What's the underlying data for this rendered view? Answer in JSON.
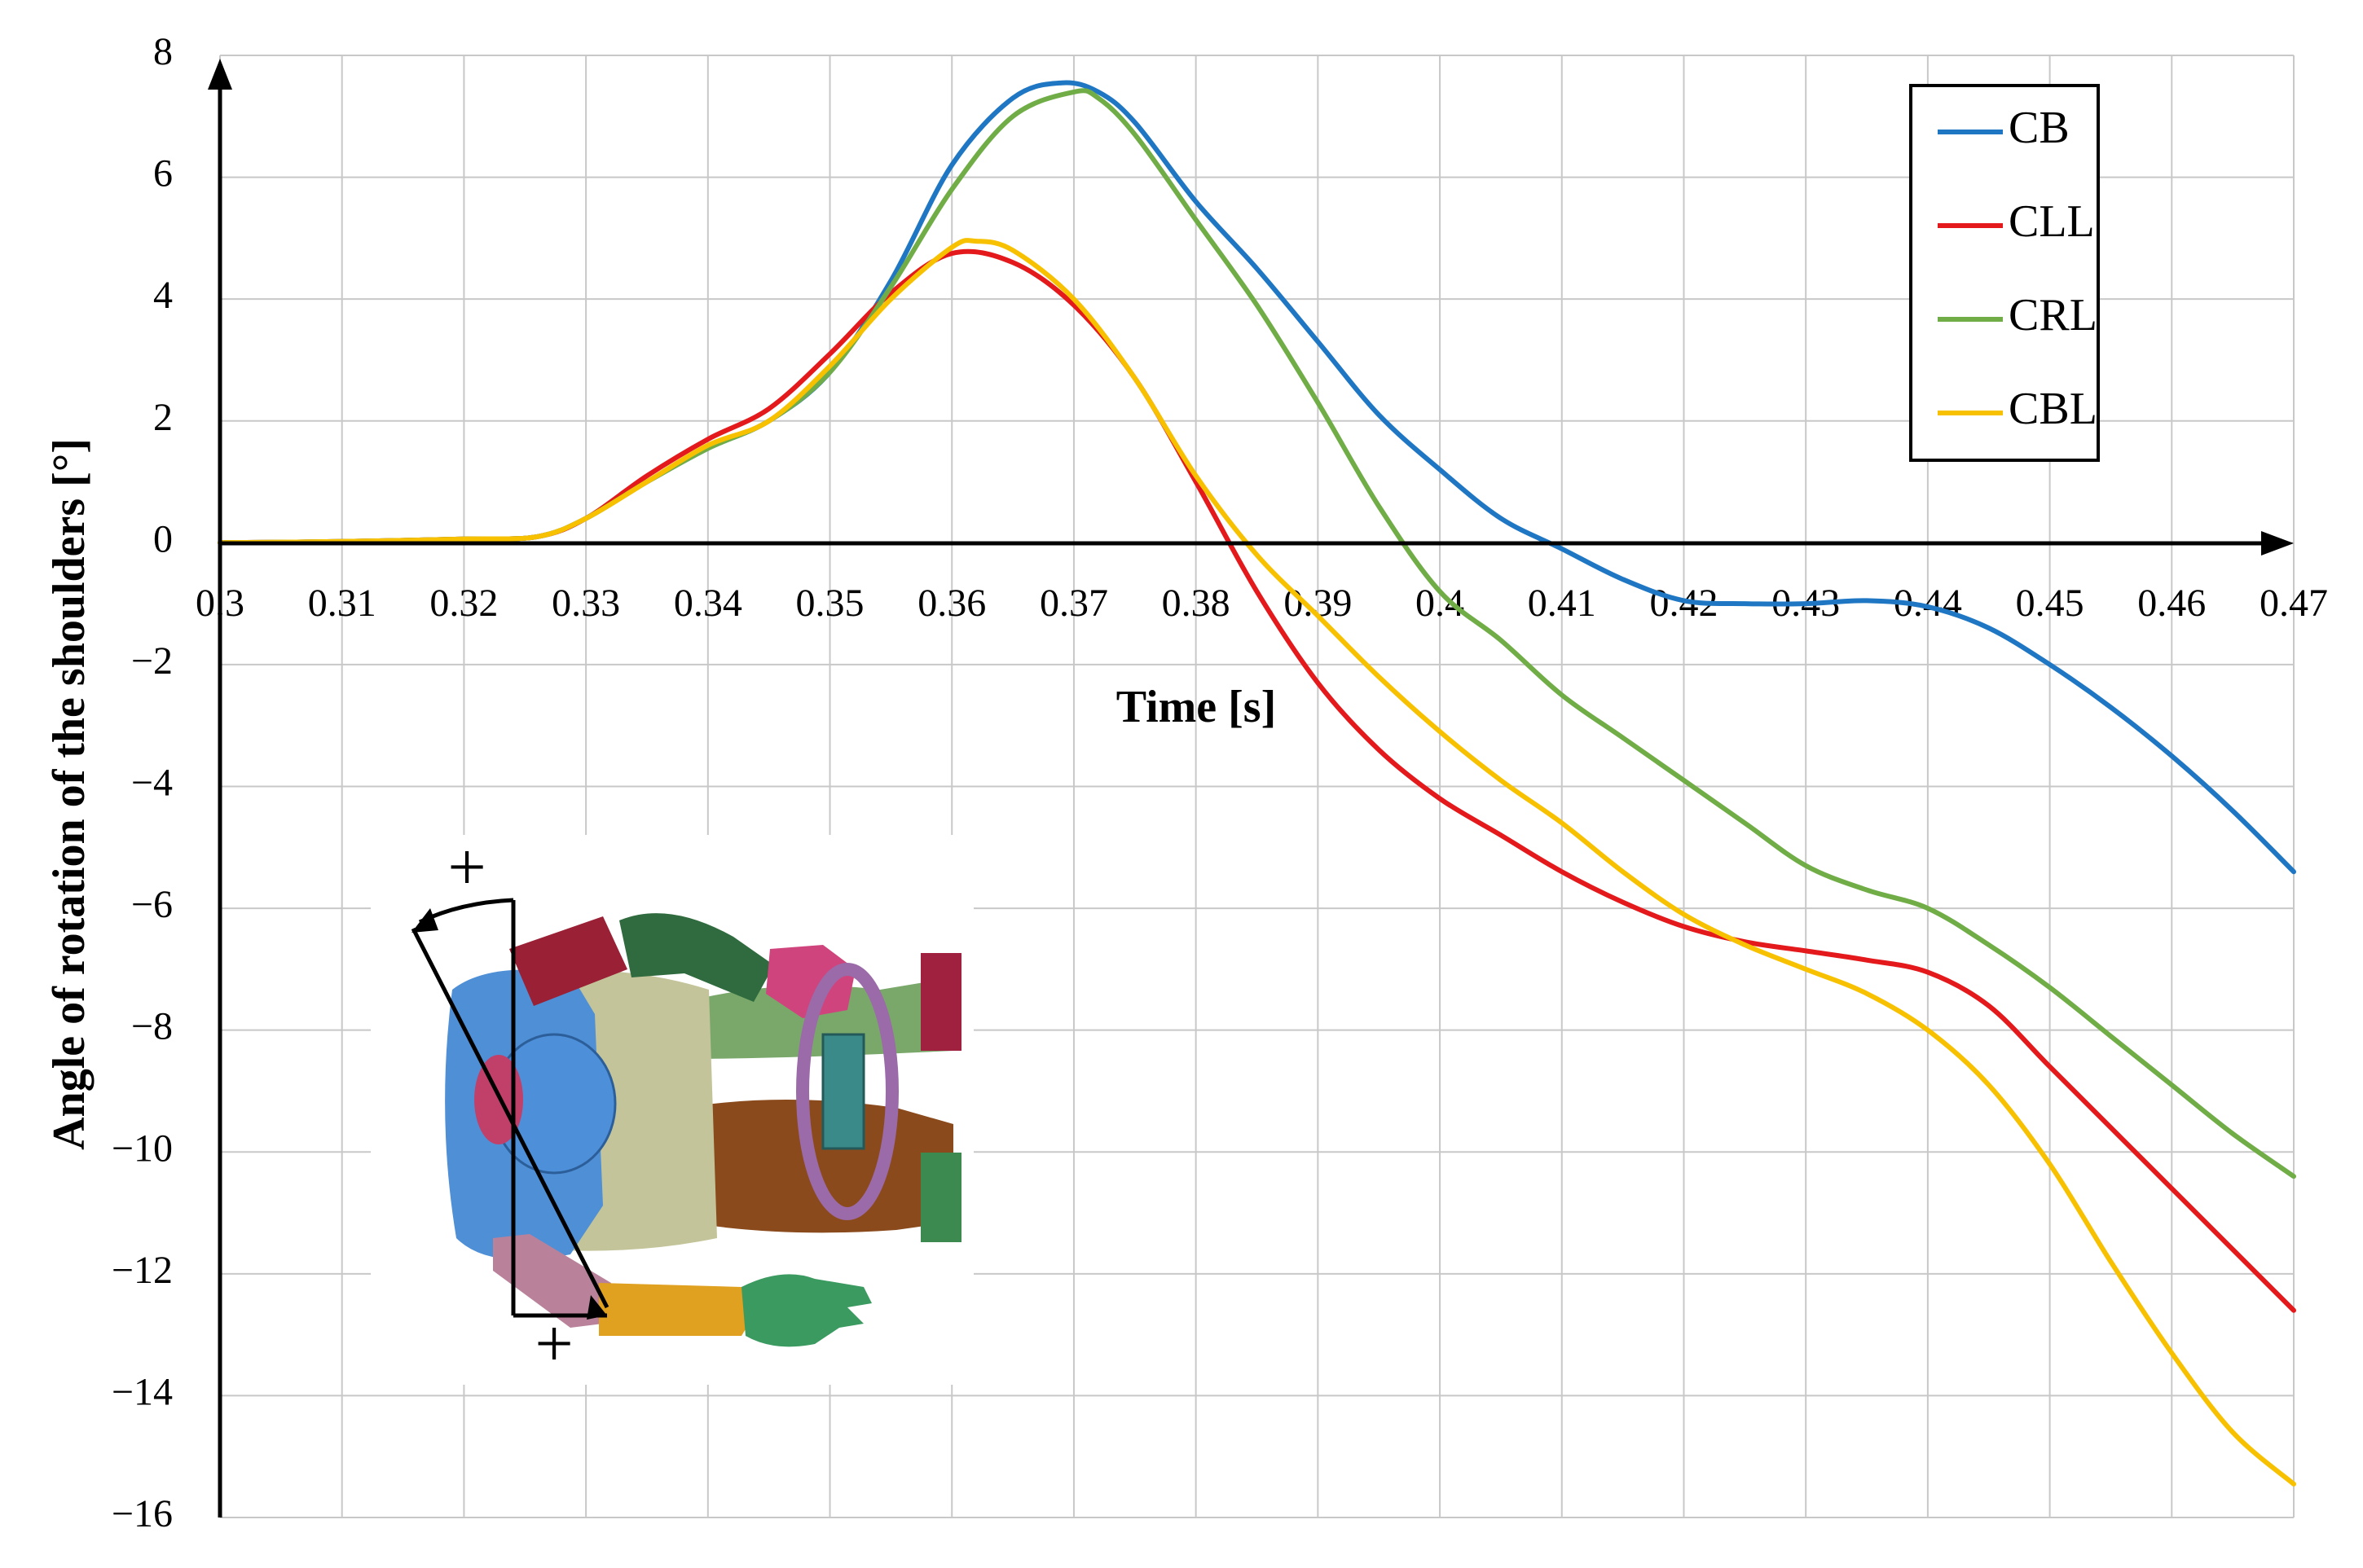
{
  "chart_data": {
    "type": "line",
    "xlabel": "Time [s]",
    "ylabel": "Angle of rotation of the shoulders [°]",
    "xlim": [
      0.3,
      0.47
    ],
    "ylim": [
      -16,
      8
    ],
    "x_ticks": [
      0.3,
      0.31,
      0.32,
      0.33,
      0.34,
      0.35,
      0.36,
      0.37,
      0.38,
      0.39,
      0.4,
      0.41,
      0.42,
      0.43,
      0.44,
      0.45,
      0.46,
      0.47
    ],
    "x_tick_labels": [
      "0.3",
      "0.31",
      "0.32",
      "0.33",
      "0.34",
      "0.35",
      "0.36",
      "0.37",
      "0.38",
      "0.39",
      "0.4",
      "0.41",
      "0.42",
      "0.43",
      "0.44",
      "0.45",
      "0.46",
      "0.47"
    ],
    "y_ticks": [
      8,
      6,
      4,
      2,
      0,
      -2,
      -4,
      -6,
      -8,
      -10,
      -12,
      -14,
      -16
    ],
    "y_tick_labels": [
      "8",
      "6",
      "4",
      "2",
      "0",
      "−2",
      "−4",
      "−6",
      "−8",
      "−10",
      "−12",
      "−14",
      "−16"
    ],
    "grid": true,
    "legend_position": "top-right",
    "series": [
      {
        "name": "CB",
        "color": "#1f77c4",
        "x": [
          0.3,
          0.31,
          0.32,
          0.326,
          0.33,
          0.335,
          0.34,
          0.345,
          0.35,
          0.355,
          0.36,
          0.365,
          0.369,
          0.372,
          0.375,
          0.38,
          0.385,
          0.39,
          0.395,
          0.4,
          0.405,
          0.41,
          0.415,
          0.42,
          0.425,
          0.43,
          0.435,
          0.44,
          0.445,
          0.45,
          0.455,
          0.46,
          0.465,
          0.47
        ],
        "y": [
          0,
          0.02,
          0.06,
          0.1,
          0.4,
          1.0,
          1.55,
          2.0,
          2.8,
          4.3,
          6.2,
          7.3,
          7.55,
          7.4,
          6.9,
          5.6,
          4.5,
          3.3,
          2.1,
          1.2,
          0.4,
          -0.1,
          -0.6,
          -0.95,
          -1.0,
          -1.0,
          -0.95,
          -1.05,
          -1.4,
          -2.0,
          -2.7,
          -3.5,
          -4.4,
          -5.4
        ]
      },
      {
        "name": "CLL",
        "color": "#e3191c",
        "x": [
          0.3,
          0.31,
          0.32,
          0.326,
          0.33,
          0.335,
          0.34,
          0.345,
          0.35,
          0.355,
          0.36,
          0.365,
          0.37,
          0.375,
          0.38,
          0.385,
          0.39,
          0.395,
          0.4,
          0.405,
          0.41,
          0.415,
          0.42,
          0.425,
          0.43,
          0.435,
          0.44,
          0.445,
          0.45,
          0.455,
          0.46,
          0.465,
          0.47
        ],
        "y": [
          0,
          0.02,
          0.06,
          0.1,
          0.4,
          1.1,
          1.7,
          2.2,
          3.1,
          4.1,
          4.75,
          4.6,
          3.9,
          2.7,
          1.0,
          -0.8,
          -2.3,
          -3.4,
          -4.2,
          -4.8,
          -5.4,
          -5.9,
          -6.3,
          -6.55,
          -6.7,
          -6.85,
          -7.05,
          -7.6,
          -8.6,
          -9.6,
          -10.6,
          -11.6,
          -12.6
        ]
      },
      {
        "name": "CRL",
        "color": "#70ad47",
        "x": [
          0.3,
          0.31,
          0.32,
          0.326,
          0.33,
          0.335,
          0.34,
          0.345,
          0.35,
          0.355,
          0.36,
          0.365,
          0.37,
          0.372,
          0.375,
          0.38,
          0.385,
          0.39,
          0.395,
          0.4,
          0.405,
          0.41,
          0.415,
          0.42,
          0.425,
          0.43,
          0.435,
          0.44,
          0.445,
          0.45,
          0.455,
          0.46,
          0.465,
          0.47
        ],
        "y": [
          0,
          0.02,
          0.06,
          0.1,
          0.4,
          1.0,
          1.55,
          2.0,
          2.8,
          4.2,
          5.8,
          7.0,
          7.4,
          7.3,
          6.7,
          5.3,
          3.9,
          2.3,
          0.6,
          -0.8,
          -1.6,
          -2.5,
          -3.2,
          -3.9,
          -4.6,
          -5.3,
          -5.7,
          -6.0,
          -6.6,
          -7.3,
          -8.1,
          -8.9,
          -9.7,
          -10.4
        ]
      },
      {
        "name": "CBL",
        "color": "#f7c100",
        "x": [
          0.3,
          0.31,
          0.32,
          0.326,
          0.33,
          0.335,
          0.34,
          0.345,
          0.35,
          0.355,
          0.36,
          0.362,
          0.365,
          0.37,
          0.375,
          0.38,
          0.385,
          0.39,
          0.395,
          0.4,
          0.405,
          0.41,
          0.415,
          0.42,
          0.425,
          0.43,
          0.435,
          0.44,
          0.445,
          0.45,
          0.455,
          0.46,
          0.465,
          0.47
        ],
        "y": [
          0,
          0.02,
          0.06,
          0.1,
          0.4,
          1.0,
          1.6,
          2.0,
          2.9,
          4.0,
          4.85,
          4.95,
          4.8,
          4.0,
          2.7,
          1.1,
          -0.2,
          -1.2,
          -2.2,
          -3.1,
          -3.9,
          -4.6,
          -5.4,
          -6.1,
          -6.6,
          -7.0,
          -7.4,
          -8.0,
          -8.9,
          -10.2,
          -11.8,
          -13.3,
          -14.6,
          -15.45
        ]
      }
    ]
  },
  "inset": {
    "plus_top": "+",
    "plus_bottom": "+"
  }
}
